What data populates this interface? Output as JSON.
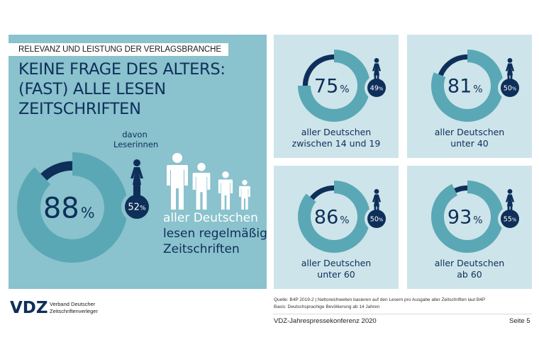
{
  "header": {
    "kicker": "RELEVANZ UND LEISTUNG DER VERLAGSBRANCHE",
    "headline_lines": [
      "KEINE FRAGE DES ALTERS:",
      "(FAST) ALLE LESEN",
      "ZEITSCHRIFTEN"
    ]
  },
  "main": {
    "female_label_lines": [
      "davon",
      "Leserinnen"
    ],
    "caption_lines": [
      "aller Deutschen",
      "lesen regelmäßig",
      "Zeitschriften"
    ]
  },
  "colors": {
    "navy": "#0e2f5a",
    "teal": "#5aa8b5",
    "panel_main": "#8ac2cd",
    "panel_card": "#cde4ea",
    "white": "#ffffff"
  },
  "chart_data": [
    {
      "type": "pie",
      "id": "main",
      "title": "aller Deutschen lesen regelmäßig Zeitschriften",
      "value": 88,
      "value_label": "88",
      "unit": "%",
      "female_share": 52,
      "female_label": "52%",
      "female_caption": "davon Leserinnen"
    },
    {
      "type": "pie",
      "id": "age-14-19",
      "value": 75,
      "value_label": "75",
      "unit": "%",
      "female_share": 49,
      "female_label": "49%",
      "caption_lines": [
        "aller Deutschen",
        "zwischen 14 und 19"
      ]
    },
    {
      "type": "pie",
      "id": "under-40",
      "value": 81,
      "value_label": "81",
      "unit": "%",
      "female_share": 50,
      "female_label": "50%",
      "caption_lines": [
        "aller Deutschen",
        "unter 40"
      ]
    },
    {
      "type": "pie",
      "id": "under-60",
      "value": 86,
      "value_label": "86",
      "unit": "%",
      "female_share": 50,
      "female_label": "50%",
      "caption_lines": [
        "aller Deutschen",
        "unter 60"
      ]
    },
    {
      "type": "pie",
      "id": "from-60",
      "value": 93,
      "value_label": "93",
      "unit": "%",
      "female_share": 55,
      "female_label": "55%",
      "caption_lines": [
        "aller Deutschen",
        "ab 60"
      ]
    }
  ],
  "footer": {
    "logo": "VDZ",
    "org_lines": [
      "Verband Deutscher",
      "Zeitschriftenverleger"
    ],
    "source_lines": [
      "Quelle: B4P 2019-2 | Nettoreichweiten basieren auf den Lesern pro Ausgabe aller Zeitschriften laut B4P",
      "Basis: Deutschsprachige Bevölkerung ab 14 Jahren"
    ],
    "conference": "VDZ-Jahrespressekonferenz 2020",
    "page": "Seite 5"
  }
}
